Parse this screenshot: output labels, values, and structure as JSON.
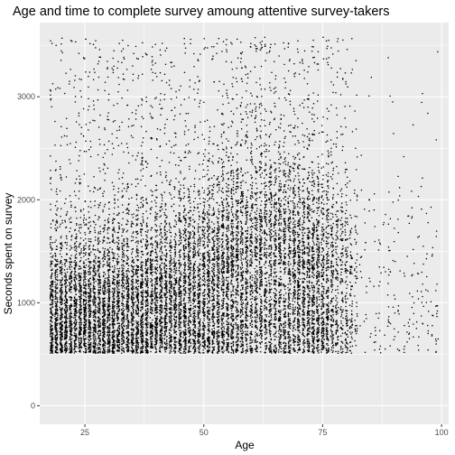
{
  "chart_data": {
    "type": "scatter",
    "title": "Age and time to complete survey amoung attentive survey-takers",
    "xlabel": "Age",
    "ylabel": "Seconds spent on survey",
    "xlim": [
      15.5,
      101.5
    ],
    "ylim": [
      -180,
      3720
    ],
    "x_ticks": [
      25,
      50,
      75,
      100
    ],
    "y_ticks": [
      0,
      1000,
      2000,
      3000
    ],
    "x_tick_labels": [
      "25",
      "50",
      "75",
      "100"
    ],
    "y_tick_labels": [
      "0",
      "1000",
      "2000",
      "3000"
    ],
    "grid": true,
    "panel_background": "#ebebeb",
    "point_color": "#000000",
    "approx_points": 14000,
    "density_profile": {
      "x_range": [
        18,
        99
      ],
      "y_range": [
        510,
        3580
      ],
      "dense_core_x": [
        18,
        80
      ],
      "dense_core_y": [
        510,
        1800
      ],
      "sparse_tail_x": [
        80,
        99
      ],
      "upper_band_y": [
        1800,
        3580
      ],
      "peak_age_band": [
        55,
        70
      ]
    }
  }
}
